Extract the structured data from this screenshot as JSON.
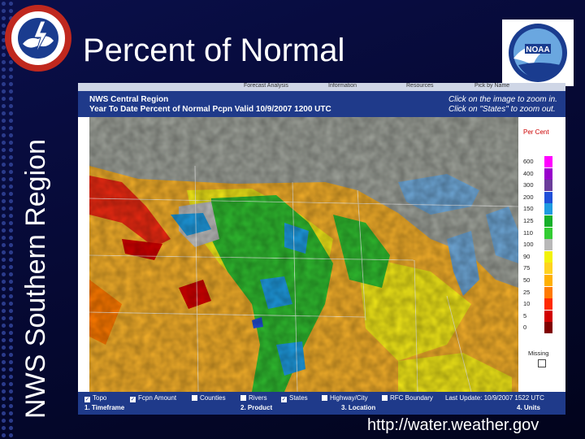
{
  "slide": {
    "title": "Percent of Normal",
    "side_label": "NWS Southern Region",
    "url": "http://water.weather.gov",
    "nws_logo_text": "NATIONAL WEATHER SERVICE",
    "noaa_logo_text": "NOAA"
  },
  "map_panel": {
    "tabs": [
      "Forecast Analysis",
      "Information",
      "Resources",
      "Pick by Name"
    ],
    "header_line1": "NWS Central Region",
    "header_line2": "Year To Date Percent of Normal Pcpn   Valid 10/9/2007 1200 UTC",
    "hint_line1": "Click on the image to zoom in.",
    "hint_line2": "Click on \"States\" to zoom out.",
    "legend_title": "Per Cent",
    "legend": [
      {
        "label": "600",
        "color": "#ff00ff"
      },
      {
        "label": "400",
        "color": "#9900cc"
      },
      {
        "label": "300",
        "color": "#6a3d9a"
      },
      {
        "label": "200",
        "color": "#1f4fd8"
      },
      {
        "label": "150",
        "color": "#1e9be0"
      },
      {
        "label": "125",
        "color": "#16b02a"
      },
      {
        "label": "110",
        "color": "#33cc33"
      },
      {
        "label": "100",
        "color": "#b8b8b8"
      },
      {
        "label": "90",
        "color": "#f2f208"
      },
      {
        "label": "75",
        "color": "#ffd21f"
      },
      {
        "label": "50",
        "color": "#ffb000"
      },
      {
        "label": "25",
        "color": "#ff7a00"
      },
      {
        "label": "10",
        "color": "#ff2a00"
      },
      {
        "label": "5",
        "color": "#d10000"
      },
      {
        "label": "0",
        "color": "#800000"
      }
    ],
    "legend_missing": "Missing",
    "checkboxes": [
      {
        "label": "Topo",
        "checked": true
      },
      {
        "label": "Fcpn Amount",
        "checked": true
      },
      {
        "label": "Counties",
        "checked": false
      },
      {
        "label": "Rivers",
        "checked": false
      },
      {
        "label": "States",
        "checked": true
      },
      {
        "label": "Highway/City",
        "checked": false
      },
      {
        "label": "RFC Boundary",
        "checked": false
      }
    ],
    "last_update": "Last Update: 10/9/2007 1522 UTC",
    "steps": [
      "1. Timeframe",
      "2. Product",
      "3. Location",
      "4. Units"
    ]
  },
  "colors": {
    "background": "#050830",
    "header_blue": "#1f3a8a",
    "lake_blue": "#6fa8d8"
  }
}
